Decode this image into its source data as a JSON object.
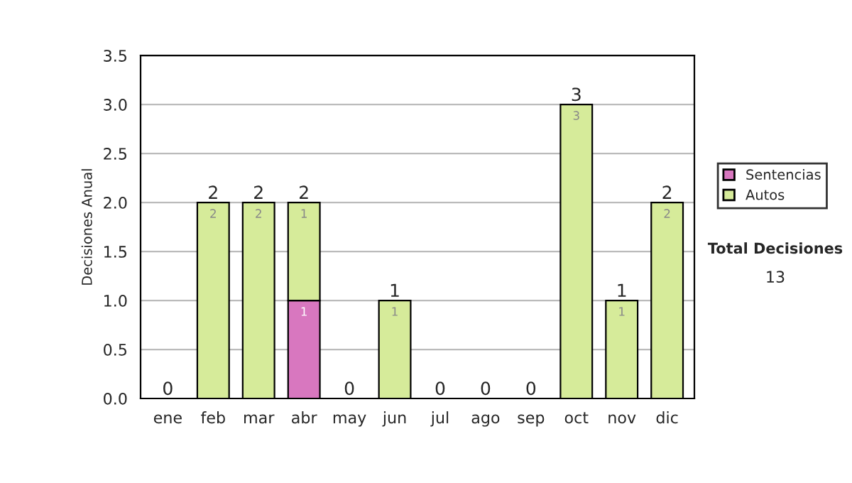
{
  "chart_data": {
    "type": "bar",
    "stacked": true,
    "ylabel": "Decisiones Anual",
    "categories": [
      "ene",
      "feb",
      "mar",
      "abr",
      "may",
      "jun",
      "jul",
      "ago",
      "sep",
      "oct",
      "nov",
      "dic"
    ],
    "series": [
      {
        "name": "Sentencias",
        "color": "#d877bf",
        "values": [
          0,
          0,
          0,
          1,
          0,
          0,
          0,
          0,
          0,
          0,
          0,
          0
        ],
        "value_labels": [
          null,
          null,
          null,
          "1",
          null,
          null,
          null,
          null,
          null,
          null,
          null,
          null
        ]
      },
      {
        "name": "Autos",
        "color": "#d6eb9a",
        "values": [
          0,
          2,
          2,
          1,
          0,
          1,
          0,
          0,
          0,
          3,
          1,
          2
        ],
        "value_labels": [
          null,
          "2",
          "2",
          "1",
          null,
          "1",
          null,
          null,
          null,
          "3",
          "1",
          "2"
        ]
      }
    ],
    "totals": [
      "0",
      "2",
      "2",
      "2",
      "0",
      "1",
      "0",
      "0",
      "0",
      "3",
      "1",
      "2"
    ],
    "ylim": [
      0,
      3.5
    ],
    "yticks": [
      {
        "value": 0,
        "label": "0.0"
      },
      {
        "value": 0.5,
        "label": "0.5"
      },
      {
        "value": 1,
        "label": "1.0"
      },
      {
        "value": 1.5,
        "label": "1.5"
      },
      {
        "value": 2,
        "label": "2.0"
      },
      {
        "value": 2.5,
        "label": "2.5"
      },
      {
        "value": 3,
        "label": "3.0"
      },
      {
        "value": 3.5,
        "label": "3.5"
      }
    ],
    "grid": "y",
    "legend": "right",
    "annotations": [
      "Total Decisiones",
      "13"
    ]
  }
}
